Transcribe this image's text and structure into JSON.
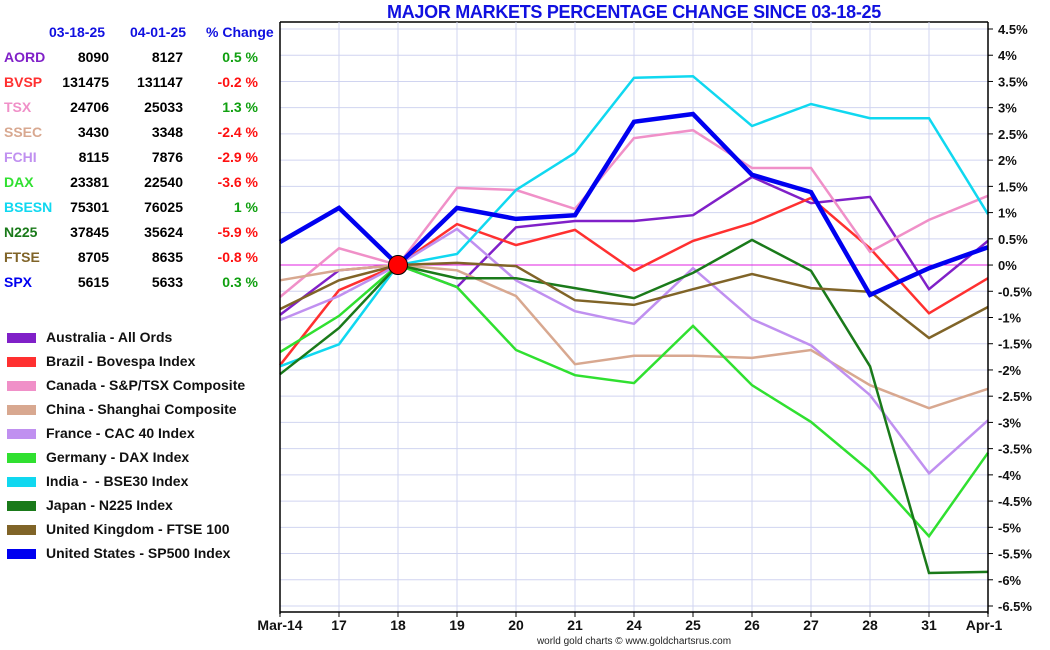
{
  "chart_data": {
    "type": "line",
    "title": "MAJOR MARKETS PERCENTAGE CHANGE SINCE 03-18-25",
    "xlabel": "",
    "ylabel": "",
    "categories": [
      "Mar-14",
      "17",
      "18",
      "19",
      "20",
      "21",
      "24",
      "25",
      "26",
      "27",
      "28",
      "31",
      "Apr-1"
    ],
    "ylim": [
      -6.5,
      4.5
    ],
    "yticks": [
      4.5,
      4,
      3.5,
      3,
      2.5,
      2,
      1.5,
      1,
      0.5,
      0,
      -0.5,
      -1,
      -1.5,
      -2,
      -2.5,
      -3,
      -3.5,
      -4,
      -4.5,
      -5,
      -5.5,
      -6,
      -6.5
    ],
    "ytick_labels": [
      "4.5%",
      "4%",
      "3.5%",
      "3%",
      "2.5%",
      "2%",
      "1.5%",
      "1%",
      "0.5%",
      "0%",
      "-0.5%",
      "-1%",
      "-1.5%",
      "-2%",
      "-2.5%",
      "-3%",
      "-3.5%",
      "-4%",
      "-4.5%",
      "-5%",
      "-5.5%",
      "-6%",
      "-6.5%"
    ],
    "grid": true,
    "y_axis_side": "right",
    "base_marker_category": "18",
    "base_marker_color": "#ff0000",
    "zero_line_color": "#e020e0",
    "series": [
      {
        "name": "Australia - All Ords",
        "color": "#8020c8",
        "width": 2.5,
        "values": [
          -0.95,
          -0.1,
          0,
          -0.42,
          0.72,
          0.84,
          0.84,
          0.95,
          1.68,
          1.18,
          1.3,
          -0.46,
          0.46
        ]
      },
      {
        "name": "Brazil - Bovespa Index",
        "color": "#ff3030",
        "width": 2.5,
        "values": [
          -1.91,
          -0.48,
          0,
          0.78,
          0.38,
          0.67,
          -0.11,
          0.46,
          0.8,
          1.28,
          0.32,
          -0.92,
          -0.25
        ]
      },
      {
        "name": "Canada - S&P/TSX Composite",
        "color": "#f090c8",
        "width": 2.5,
        "values": [
          -0.61,
          0.32,
          0,
          1.47,
          1.43,
          1.07,
          2.42,
          2.57,
          1.85,
          1.85,
          0.25,
          0.86,
          1.32
        ]
      },
      {
        "name": "China - Shanghai Composite",
        "color": "#d8a890",
        "width": 2.5,
        "values": [
          -0.29,
          -0.1,
          0,
          -0.1,
          -0.59,
          -1.89,
          -1.73,
          -1.73,
          -1.77,
          -1.62,
          -2.29,
          -2.73,
          -2.36
        ]
      },
      {
        "name": "France - CAC 40 Index",
        "color": "#c090f0",
        "width": 2.5,
        "values": [
          -1.05,
          -0.59,
          0,
          0.69,
          -0.29,
          -0.88,
          -1.12,
          -0.06,
          -1.03,
          -1.53,
          -2.48,
          -3.97,
          -2.96
        ]
      },
      {
        "name": "Germany - DAX Index",
        "color": "#30e030",
        "width": 2.5,
        "values": [
          -1.66,
          -0.97,
          0,
          -0.42,
          -1.62,
          -2.1,
          -2.25,
          -1.16,
          -2.29,
          -2.99,
          -3.93,
          -5.17,
          -3.58
        ]
      },
      {
        "name": "India -  - BSE30 Index",
        "color": "#10d8f0",
        "width": 2.5,
        "values": [
          -1.93,
          -1.51,
          0,
          0.21,
          1.43,
          2.14,
          3.57,
          3.6,
          2.65,
          3.07,
          2.8,
          2.8,
          0.97
        ]
      },
      {
        "name": "Japan - N225 Index",
        "color": "#1a7a1a",
        "width": 2.5,
        "values": [
          -2.08,
          -1.2,
          0,
          -0.25,
          -0.25,
          -0.44,
          -0.63,
          -0.15,
          0.48,
          -0.11,
          -1.93,
          -5.87,
          -5.85
        ]
      },
      {
        "name": "United Kingdom - FTSE 100",
        "color": "#806428",
        "width": 2.5,
        "values": [
          -0.84,
          -0.29,
          0,
          0.04,
          -0.02,
          -0.67,
          -0.76,
          -0.46,
          -0.17,
          -0.44,
          -0.51,
          -1.39,
          -0.8
        ]
      },
      {
        "name": "United States - SP500 Index",
        "color": "#0000f0",
        "width": 4.5,
        "values": [
          0.44,
          1.09,
          0,
          1.09,
          0.88,
          0.95,
          2.73,
          2.88,
          1.72,
          1.39,
          -0.57,
          -0.06,
          0.34
        ]
      }
    ],
    "credit": "world gold charts © www.goldchartsrus.com"
  },
  "table": {
    "headers": [
      "03-18-25",
      "04-01-25",
      "% Change"
    ],
    "rows": [
      {
        "code": "AORD",
        "color": "#8020c8",
        "start": "8090",
        "end": "8127",
        "change": "0.5 %",
        "change_color": "#10a010"
      },
      {
        "code": "BVSP",
        "color": "#ff3030",
        "start": "131475",
        "end": "131147",
        "change": "-0.2 %",
        "change_color": "#ff1010"
      },
      {
        "code": "TSX",
        "color": "#f090c8",
        "start": "24706",
        "end": "25033",
        "change": "1.3 %",
        "change_color": "#10a010"
      },
      {
        "code": "SSEC",
        "color": "#d8a890",
        "start": "3430",
        "end": "3348",
        "change": "-2.4 %",
        "change_color": "#ff1010"
      },
      {
        "code": "FCHI",
        "color": "#c090f0",
        "start": "8115",
        "end": "7876",
        "change": "-2.9 %",
        "change_color": "#ff1010"
      },
      {
        "code": "DAX",
        "color": "#30e030",
        "start": "23381",
        "end": "22540",
        "change": "-3.6 %",
        "change_color": "#ff1010"
      },
      {
        "code": "BSESN",
        "color": "#10d8f0",
        "start": "75301",
        "end": "76025",
        "change": "1 %",
        "change_color": "#10a010"
      },
      {
        "code": "N225",
        "color": "#1a7a1a",
        "start": "37845",
        "end": "35624",
        "change": "-5.9 %",
        "change_color": "#ff1010"
      },
      {
        "code": "FTSE",
        "color": "#806428",
        "start": "8705",
        "end": "8635",
        "change": "-0.8 %",
        "change_color": "#ff1010"
      },
      {
        "code": "SPX",
        "color": "#0000f0",
        "start": "5615",
        "end": "5633",
        "change": "0.3 %",
        "change_color": "#10a010"
      }
    ]
  }
}
